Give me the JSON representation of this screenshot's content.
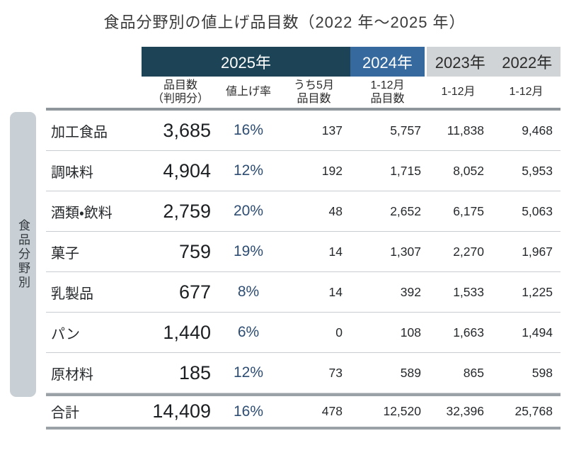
{
  "title": "食品分野別の値上げ品目数（2022 年～2025 年）",
  "sidebar_label": "食品分野別",
  "colors": {
    "band_2025": "#1d4456",
    "band_2024": "#36699e",
    "band_past": "#d1d4d6",
    "percent_accent": "#2e4d73",
    "sidebar_bg": "#c8d0d6"
  },
  "header": {
    "y2025": "2025年",
    "y2024": "2024年",
    "y2023": "2023年",
    "y2022": "2022年"
  },
  "subheader": {
    "items_line1": "品目数",
    "items_line2": "（判明分）",
    "rate": "値上げ率",
    "may_line1": "うち5月",
    "may_line2": "品目数",
    "y2024_line1": "1-12月",
    "y2024_line2": "品目数",
    "y2023": "1-12月",
    "y2022": "1-12月"
  },
  "chart_data": {
    "type": "table",
    "title": "食品分野別の値上げ品目数（2022 年～2025 年）",
    "row_group_label": "食品分野別",
    "column_groups": [
      "2025年",
      "2024年",
      "2023年",
      "2022年"
    ],
    "columns": [
      "品目数（判明分）",
      "値上げ率",
      "うち5月品目数",
      "1-12月品目数",
      "1-12月",
      "1-12月"
    ],
    "rows": [
      {
        "category": "加工食品",
        "items": "3,685",
        "rate": "16%",
        "may": "137",
        "y2024": "5,757",
        "y2023": "11,838",
        "y2022": "9,468"
      },
      {
        "category": "調味料",
        "items": "4,904",
        "rate": "12%",
        "may": "192",
        "y2024": "1,715",
        "y2023": "8,052",
        "y2022": "5,953"
      },
      {
        "category": "酒類・飲料",
        "items": "2,759",
        "rate": "20%",
        "may": "48",
        "y2024": "2,652",
        "y2023": "6,175",
        "y2022": "5,063"
      },
      {
        "category": "菓子",
        "items": "759",
        "rate": "19%",
        "may": "14",
        "y2024": "1,307",
        "y2023": "2,270",
        "y2022": "1,967"
      },
      {
        "category": "乳製品",
        "items": "677",
        "rate": "8%",
        "may": "14",
        "y2024": "392",
        "y2023": "1,533",
        "y2022": "1,225"
      },
      {
        "category": "パン",
        "items": "1,440",
        "rate": "6%",
        "may": "0",
        "y2024": "108",
        "y2023": "1,663",
        "y2022": "1,494"
      },
      {
        "category": "原材料",
        "items": "185",
        "rate": "12%",
        "may": "73",
        "y2024": "589",
        "y2023": "865",
        "y2022": "598"
      }
    ],
    "total": {
      "category": "合計",
      "items": "14,409",
      "rate": "16%",
      "may": "478",
      "y2024": "12,520",
      "y2023": "32,396",
      "y2022": "25,768"
    }
  }
}
